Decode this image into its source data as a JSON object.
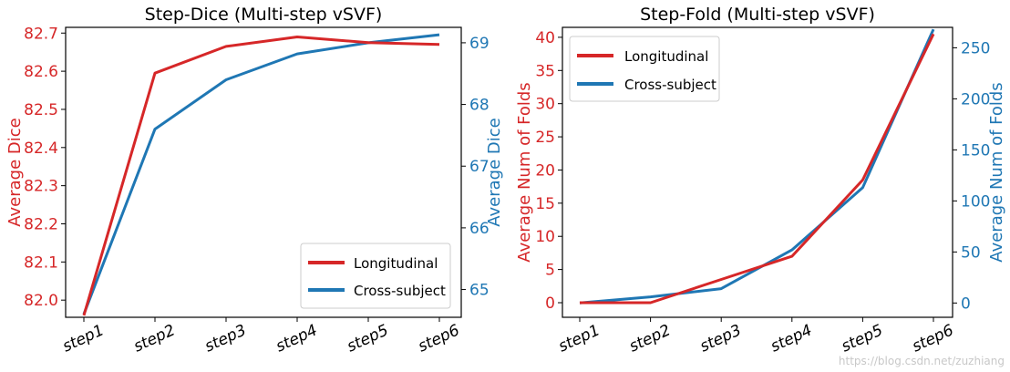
{
  "chart_data": [
    {
      "type": "line",
      "title": "Step-Dice (Multi-step vSVF)",
      "categories": [
        "step1",
        "step2",
        "step3",
        "step4",
        "step5",
        "step6"
      ],
      "ylabel_left": "Average Dice",
      "ylabel_right": "Average Dice",
      "ylim_left": [
        81.955,
        82.715
      ],
      "ylim_right": [
        64.55,
        69.25
      ],
      "yticks_left": [
        82.0,
        82.1,
        82.2,
        82.3,
        82.4,
        82.5,
        82.6,
        82.7
      ],
      "yticks_right": [
        65,
        66,
        67,
        68,
        69
      ],
      "legend_position": "lower-right",
      "series": [
        {
          "name": "Longitudinal",
          "axis": "left",
          "color": "#d62728",
          "values": [
            81.96,
            82.595,
            82.665,
            82.69,
            82.675,
            82.67
          ]
        },
        {
          "name": "Cross-subject",
          "axis": "right",
          "color": "#1f77b4",
          "values": [
            64.6,
            67.6,
            68.4,
            68.82,
            69.0,
            69.13
          ]
        }
      ]
    },
    {
      "type": "line",
      "title": "Step-Fold (Multi-step vSVF)",
      "categories": [
        "step1",
        "step2",
        "step3",
        "step4",
        "step5",
        "step6"
      ],
      "ylabel_left": "Average Num of Folds",
      "ylabel_right": "Average Num of Folds",
      "ylim_left": [
        -2.2,
        41.5
      ],
      "ylim_right": [
        -14,
        270
      ],
      "yticks_left": [
        0,
        5,
        10,
        15,
        20,
        25,
        30,
        35,
        40
      ],
      "yticks_right": [
        0,
        50,
        100,
        150,
        200,
        250
      ],
      "legend_position": "upper-left",
      "series": [
        {
          "name": "Longitudinal",
          "axis": "left",
          "color": "#d62728",
          "values": [
            0,
            0,
            3.5,
            7,
            18.5,
            40.5
          ]
        },
        {
          "name": "Cross-subject",
          "axis": "right",
          "color": "#1f77b4",
          "values": [
            0,
            6,
            14,
            52,
            113,
            268
          ]
        }
      ]
    }
  ],
  "watermark": "https://blog.csdn.net/zuzhiang"
}
